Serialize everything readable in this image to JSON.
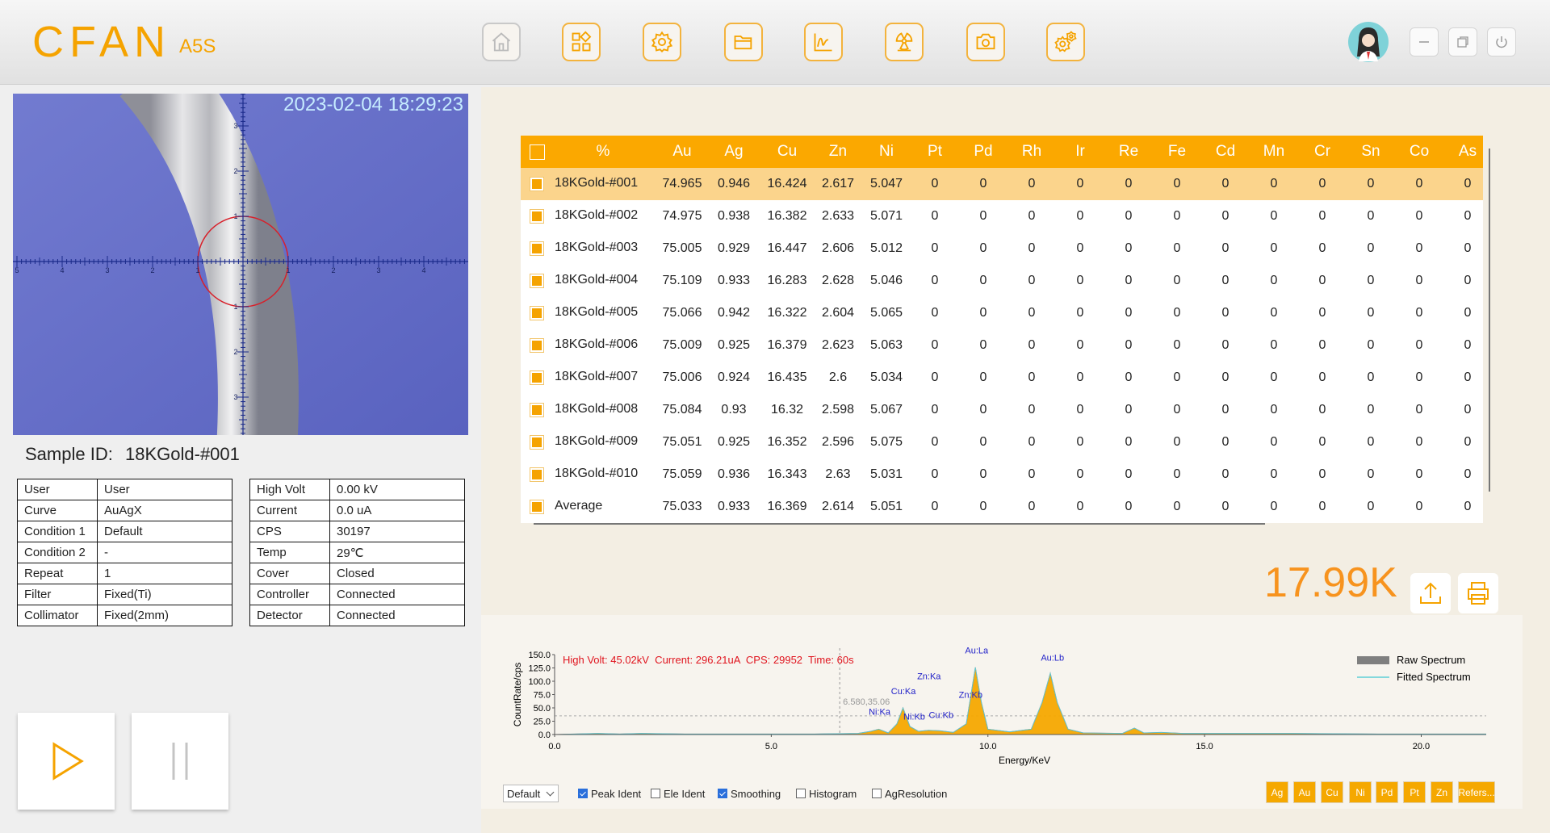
{
  "header": {
    "logo": "CFAN",
    "model": "A5S"
  },
  "camera": {
    "timestamp": "2023-02-04 18:29:23",
    "x_scale": [
      "5",
      "4",
      "3",
      "2",
      "1",
      "1",
      "2",
      "3",
      "4"
    ],
    "y_scale": [
      "3",
      "2",
      "1",
      "1",
      "2",
      "3"
    ]
  },
  "sample": {
    "label": "Sample ID:",
    "id": "18KGold-#001"
  },
  "info_left": [
    [
      "User",
      "User"
    ],
    [
      "Curve",
      "AuAgX"
    ],
    [
      "Condition 1",
      "Default"
    ],
    [
      "Condition 2",
      "-"
    ],
    [
      "Repeat",
      "1"
    ],
    [
      "Filter",
      "Fixed(Ti)"
    ],
    [
      "Collimator",
      "Fixed(2mm)"
    ]
  ],
  "info_right": [
    [
      "High Volt",
      "0.00 kV"
    ],
    [
      "Current",
      "0.0 uA"
    ],
    [
      "CPS",
      "30197"
    ],
    [
      "Temp",
      "29℃"
    ],
    [
      "Cover",
      "Closed"
    ],
    [
      "Controller",
      "Connected"
    ],
    [
      "Detector",
      "Connected"
    ]
  ],
  "results": {
    "columns": [
      "%",
      "Au",
      "Ag",
      "Cu",
      "Zn",
      "Ni",
      "Pt",
      "Pd",
      "Rh",
      "Ir",
      "Re",
      "Fe",
      "Cd",
      "Mn",
      "Cr",
      "Sn",
      "Co",
      "As"
    ],
    "rows": [
      {
        "name": "18KGold-#001",
        "values": [
          74.965,
          0.946,
          16.424,
          2.617,
          5.047,
          0,
          0,
          0,
          0,
          0,
          0,
          0,
          0,
          0,
          0,
          0,
          0
        ]
      },
      {
        "name": "18KGold-#002",
        "values": [
          74.975,
          0.938,
          16.382,
          2.633,
          5.071,
          0,
          0,
          0,
          0,
          0,
          0,
          0,
          0,
          0,
          0,
          0,
          0
        ]
      },
      {
        "name": "18KGold-#003",
        "values": [
          75.005,
          0.929,
          16.447,
          2.606,
          5.012,
          0,
          0,
          0,
          0,
          0,
          0,
          0,
          0,
          0,
          0,
          0,
          0
        ]
      },
      {
        "name": "18KGold-#004",
        "values": [
          75.109,
          0.933,
          16.283,
          2.628,
          5.046,
          0,
          0,
          0,
          0,
          0,
          0,
          0,
          0,
          0,
          0,
          0,
          0
        ]
      },
      {
        "name": "18KGold-#005",
        "values": [
          75.066,
          0.942,
          16.322,
          2.604,
          5.065,
          0,
          0,
          0,
          0,
          0,
          0,
          0,
          0,
          0,
          0,
          0,
          0
        ]
      },
      {
        "name": "18KGold-#006",
        "values": [
          75.009,
          0.925,
          16.379,
          2.623,
          5.063,
          0,
          0,
          0,
          0,
          0,
          0,
          0,
          0,
          0,
          0,
          0,
          0
        ]
      },
      {
        "name": "18KGold-#007",
        "values": [
          75.006,
          0.924,
          16.435,
          2.6,
          5.034,
          0,
          0,
          0,
          0,
          0,
          0,
          0,
          0,
          0,
          0,
          0,
          0
        ]
      },
      {
        "name": "18KGold-#008",
        "values": [
          75.084,
          0.93,
          16.32,
          2.598,
          5.067,
          0,
          0,
          0,
          0,
          0,
          0,
          0,
          0,
          0,
          0,
          0,
          0
        ]
      },
      {
        "name": "18KGold-#009",
        "values": [
          75.051,
          0.925,
          16.352,
          2.596,
          5.075,
          0,
          0,
          0,
          0,
          0,
          0,
          0,
          0,
          0,
          0,
          0,
          0
        ]
      },
      {
        "name": "18KGold-#010",
        "values": [
          75.059,
          0.936,
          16.343,
          2.63,
          5.031,
          0,
          0,
          0,
          0,
          0,
          0,
          0,
          0,
          0,
          0,
          0,
          0
        ]
      },
      {
        "name": "Average",
        "values": [
          75.033,
          0.933,
          16.369,
          2.614,
          5.051,
          0,
          0,
          0,
          0,
          0,
          0,
          0,
          0,
          0,
          0,
          0,
          0
        ]
      }
    ],
    "selected_row": 0
  },
  "result_value": "17.99K",
  "spectrum": {
    "type": "line",
    "info": "High Volt: 45.02kV  Current: 296.21uA  CPS: 29952  Time: 60s",
    "x_label": "Energy/KeV",
    "y_label": "CountRate/cps",
    "xlim": [
      0,
      21.5
    ],
    "ylim": [
      0,
      150
    ],
    "xticks": [
      {
        "value": 0,
        "label": "0.0"
      },
      {
        "value": 5,
        "label": "5.0"
      },
      {
        "value": 10,
        "label": "10.0"
      },
      {
        "value": 15,
        "label": "15.0"
      },
      {
        "value": 20,
        "label": "20.0"
      }
    ],
    "yticks": [
      {
        "value": 0,
        "label": "0.0"
      },
      {
        "value": 25,
        "label": "25.0"
      },
      {
        "value": 50,
        "label": "50.0"
      },
      {
        "value": 75,
        "label": "75.0"
      },
      {
        "value": 100,
        "label": "100.0"
      },
      {
        "value": 125,
        "label": "125.0"
      },
      {
        "value": 150,
        "label": "150.0"
      }
    ],
    "x": [
      0,
      1,
      1.5,
      2,
      3,
      4,
      5,
      6,
      7,
      7.3,
      7.48,
      7.7,
      7.9,
      8.04,
      8.2,
      8.4,
      8.63,
      8.9,
      9.2,
      9.5,
      9.6,
      9.71,
      9.85,
      10,
      10.5,
      11,
      11.25,
      11.44,
      11.6,
      11.85,
      12.2,
      13.1,
      13.38,
      13.6,
      14,
      14.5,
      15,
      17,
      19,
      21.5
    ],
    "series": [
      {
        "name": "Raw Spectrum",
        "color": "#7f7f7f",
        "fill": "#f5a800",
        "values": [
          0,
          2,
          1,
          2,
          1,
          1,
          1,
          1,
          2,
          6,
          10,
          3,
          20,
          50,
          15,
          6,
          8,
          7,
          4,
          20,
          70,
          126,
          60,
          10,
          5,
          10,
          60,
          115,
          60,
          10,
          3,
          2,
          12,
          3,
          4,
          2,
          2,
          2,
          1,
          1
        ]
      },
      {
        "name": "Fitted Spectrum",
        "color": "#5fcfd6",
        "values": [
          0,
          2,
          1,
          2,
          1,
          1,
          1,
          1,
          2,
          6,
          10,
          3,
          20,
          50,
          15,
          6,
          8,
          7,
          4,
          20,
          70,
          126,
          60,
          10,
          5,
          10,
          60,
          115,
          60,
          10,
          3,
          2,
          12,
          3,
          4,
          2,
          2,
          2,
          1,
          1
        ]
      }
    ],
    "peaks": [
      {
        "label": "Ni:Ka",
        "x": 7.5,
        "y": 37
      },
      {
        "label": "Cu:Ka",
        "x": 8.05,
        "y": 76
      },
      {
        "label": "Ni:Kb",
        "x": 8.3,
        "y": 28
      },
      {
        "label": "Cu:Kb",
        "x": 8.92,
        "y": 31
      },
      {
        "label": "Zn:Ka",
        "x": 8.64,
        "y": 104
      },
      {
        "label": "Au:La",
        "x": 9.74,
        "y": 152
      },
      {
        "label": "Zn:Kb",
        "x": 9.6,
        "y": 69
      },
      {
        "label": "Au:Lb",
        "x": 11.49,
        "y": 139
      }
    ],
    "cursor": {
      "x": 6.58,
      "y": 35.06,
      "label": "6.580,35.06"
    }
  },
  "controls": {
    "select": "Default",
    "checkboxes": [
      {
        "label": "Peak Ident",
        "checked": true
      },
      {
        "label": "Ele Ident",
        "checked": false
      },
      {
        "label": "Smoothing",
        "checked": true
      },
      {
        "label": "Histogram",
        "checked": false
      },
      {
        "label": "AgResolution",
        "checked": false
      }
    ],
    "element_buttons": [
      "Ag",
      "Au",
      "Cu",
      "Ni",
      "Pd",
      "Pt",
      "Zn",
      "Refers..."
    ]
  }
}
